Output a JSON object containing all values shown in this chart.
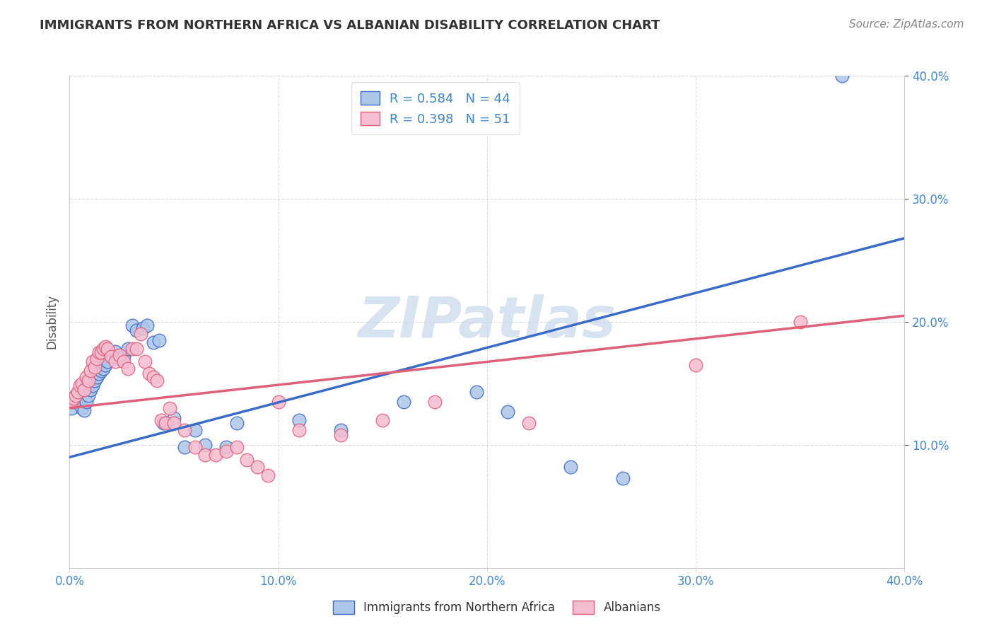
{
  "title": "IMMIGRANTS FROM NORTHERN AFRICA VS ALBANIAN DISABILITY CORRELATION CHART",
  "source": "Source: ZipAtlas.com",
  "ylabel": "Disability",
  "xlim": [
    0.0,
    0.4
  ],
  "ylim": [
    0.0,
    0.4
  ],
  "x_ticks": [
    0.0,
    0.1,
    0.2,
    0.3,
    0.4
  ],
  "y_ticks": [
    0.1,
    0.2,
    0.3,
    0.4
  ],
  "legend_r_blue": "0.584",
  "legend_n_blue": "44",
  "legend_r_pink": "0.398",
  "legend_n_pink": "51",
  "blue_color": "#aec6e8",
  "pink_color": "#f5bcd0",
  "blue_line_color": "#3a6bc9",
  "pink_line_color": "#e0607a",
  "blue_scatter": [
    [
      0.001,
      0.13
    ],
    [
      0.002,
      0.135
    ],
    [
      0.003,
      0.14
    ],
    [
      0.004,
      0.138
    ],
    [
      0.005,
      0.143
    ],
    [
      0.006,
      0.13
    ],
    [
      0.007,
      0.128
    ],
    [
      0.008,
      0.135
    ],
    [
      0.009,
      0.14
    ],
    [
      0.01,
      0.145
    ],
    [
      0.011,
      0.148
    ],
    [
      0.012,
      0.152
    ],
    [
      0.013,
      0.155
    ],
    [
      0.014,
      0.158
    ],
    [
      0.015,
      0.16
    ],
    [
      0.016,
      0.162
    ],
    [
      0.017,
      0.165
    ],
    [
      0.018,
      0.168
    ],
    [
      0.02,
      0.173
    ],
    [
      0.022,
      0.176
    ],
    [
      0.024,
      0.17
    ],
    [
      0.026,
      0.172
    ],
    [
      0.028,
      0.178
    ],
    [
      0.03,
      0.197
    ],
    [
      0.032,
      0.193
    ],
    [
      0.035,
      0.195
    ],
    [
      0.037,
      0.197
    ],
    [
      0.04,
      0.183
    ],
    [
      0.043,
      0.185
    ],
    [
      0.045,
      0.118
    ],
    [
      0.05,
      0.122
    ],
    [
      0.055,
      0.098
    ],
    [
      0.06,
      0.112
    ],
    [
      0.065,
      0.1
    ],
    [
      0.075,
      0.098
    ],
    [
      0.08,
      0.118
    ],
    [
      0.11,
      0.12
    ],
    [
      0.13,
      0.112
    ],
    [
      0.16,
      0.135
    ],
    [
      0.195,
      0.143
    ],
    [
      0.21,
      0.127
    ],
    [
      0.24,
      0.082
    ],
    [
      0.265,
      0.073
    ],
    [
      0.37,
      0.4
    ]
  ],
  "pink_scatter": [
    [
      0.001,
      0.135
    ],
    [
      0.002,
      0.138
    ],
    [
      0.003,
      0.14
    ],
    [
      0.004,
      0.143
    ],
    [
      0.005,
      0.148
    ],
    [
      0.006,
      0.15
    ],
    [
      0.007,
      0.145
    ],
    [
      0.008,
      0.155
    ],
    [
      0.009,
      0.152
    ],
    [
      0.01,
      0.16
    ],
    [
      0.011,
      0.168
    ],
    [
      0.012,
      0.163
    ],
    [
      0.013,
      0.17
    ],
    [
      0.014,
      0.175
    ],
    [
      0.015,
      0.175
    ],
    [
      0.016,
      0.178
    ],
    [
      0.017,
      0.18
    ],
    [
      0.018,
      0.178
    ],
    [
      0.02,
      0.172
    ],
    [
      0.022,
      0.168
    ],
    [
      0.024,
      0.173
    ],
    [
      0.026,
      0.168
    ],
    [
      0.028,
      0.162
    ],
    [
      0.03,
      0.178
    ],
    [
      0.032,
      0.178
    ],
    [
      0.034,
      0.19
    ],
    [
      0.036,
      0.168
    ],
    [
      0.038,
      0.158
    ],
    [
      0.04,
      0.155
    ],
    [
      0.042,
      0.152
    ],
    [
      0.044,
      0.12
    ],
    [
      0.046,
      0.118
    ],
    [
      0.048,
      0.13
    ],
    [
      0.05,
      0.118
    ],
    [
      0.055,
      0.112
    ],
    [
      0.06,
      0.098
    ],
    [
      0.065,
      0.092
    ],
    [
      0.07,
      0.092
    ],
    [
      0.075,
      0.095
    ],
    [
      0.08,
      0.098
    ],
    [
      0.085,
      0.088
    ],
    [
      0.09,
      0.082
    ],
    [
      0.095,
      0.075
    ],
    [
      0.1,
      0.135
    ],
    [
      0.11,
      0.112
    ],
    [
      0.13,
      0.108
    ],
    [
      0.15,
      0.12
    ],
    [
      0.175,
      0.135
    ],
    [
      0.22,
      0.118
    ],
    [
      0.3,
      0.165
    ],
    [
      0.35,
      0.2
    ]
  ],
  "blue_line": [
    [
      0.0,
      0.09
    ],
    [
      0.4,
      0.268
    ]
  ],
  "pink_line": [
    [
      0.0,
      0.13
    ],
    [
      0.4,
      0.205
    ]
  ],
  "watermark_text": "ZIPatlas",
  "watermark_color": "#c8d8ec",
  "background_color": "#ffffff",
  "grid_color": "#cccccc",
  "title_fontsize": 13,
  "source_fontsize": 11,
  "tick_color": "#4488cc",
  "label_color": "#555555"
}
